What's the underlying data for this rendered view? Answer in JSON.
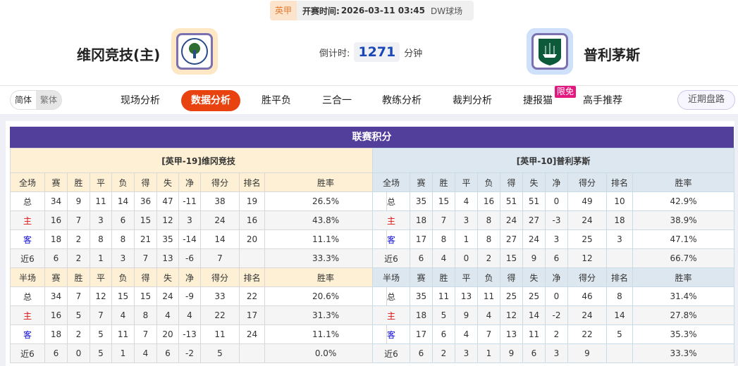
{
  "match": {
    "league": "英甲",
    "kickoff_label": "开赛时间:",
    "kickoff": "2026-03-11 03:45",
    "venue": "DW球场",
    "home": "维冈竞技(主)",
    "away": "普利茅斯",
    "countdown_label": "倒计时:",
    "countdown": "1271",
    "countdown_unit": "分钟"
  },
  "nav": {
    "lang": [
      "简体",
      "繁体"
    ],
    "items": [
      "现场分析",
      "数据分析",
      "胜平负",
      "三合一",
      "教练分析",
      "裁判分析",
      "捷报猫",
      "高手推荐"
    ],
    "active": "数据分析",
    "badge": "限免",
    "recent": "近期盘路"
  },
  "standings": {
    "title": "联赛积分",
    "cols_full": [
      "全场",
      "赛",
      "胜",
      "平",
      "负",
      "得",
      "失",
      "净",
      "得分",
      "排名",
      "胜率"
    ],
    "cols_half": [
      "半场",
      "赛",
      "胜",
      "平",
      "负",
      "得",
      "失",
      "净",
      "得分",
      "排名",
      "胜率"
    ],
    "home": {
      "name": "[英甲-19]维冈竞技",
      "full": [
        [
          "总",
          "34",
          "9",
          "11",
          "14",
          "36",
          "47",
          "-11",
          "38",
          "19",
          "26.5%"
        ],
        [
          "主",
          "16",
          "7",
          "3",
          "6",
          "15",
          "12",
          "3",
          "24",
          "16",
          "43.8%"
        ],
        [
          "客",
          "18",
          "2",
          "8",
          "8",
          "21",
          "35",
          "-14",
          "14",
          "20",
          "11.1%"
        ],
        [
          "近6",
          "6",
          "2",
          "1",
          "3",
          "7",
          "13",
          "-6",
          "7",
          "",
          "33.3%"
        ]
      ],
      "half": [
        [
          "总",
          "34",
          "7",
          "12",
          "15",
          "15",
          "24",
          "-9",
          "33",
          "22",
          "20.6%"
        ],
        [
          "主",
          "16",
          "5",
          "7",
          "4",
          "8",
          "4",
          "4",
          "22",
          "17",
          "31.3%"
        ],
        [
          "客",
          "18",
          "2",
          "5",
          "11",
          "7",
          "20",
          "-13",
          "11",
          "24",
          "11.1%"
        ],
        [
          "近6",
          "6",
          "0",
          "5",
          "1",
          "4",
          "6",
          "-2",
          "5",
          "",
          "0.0%"
        ]
      ]
    },
    "away": {
      "name": "[英甲-10]普利茅斯",
      "full": [
        [
          "总",
          "35",
          "15",
          "4",
          "16",
          "51",
          "51",
          "0",
          "49",
          "10",
          "42.9%"
        ],
        [
          "主",
          "18",
          "7",
          "3",
          "8",
          "24",
          "27",
          "-3",
          "24",
          "18",
          "38.9%"
        ],
        [
          "客",
          "17",
          "8",
          "1",
          "8",
          "27",
          "24",
          "3",
          "25",
          "3",
          "47.1%"
        ],
        [
          "近6",
          "6",
          "4",
          "0",
          "2",
          "15",
          "9",
          "6",
          "12",
          "",
          "66.7%"
        ]
      ],
      "half": [
        [
          "总",
          "35",
          "11",
          "13",
          "11",
          "25",
          "25",
          "0",
          "46",
          "8",
          "31.4%"
        ],
        [
          "主",
          "18",
          "5",
          "9",
          "4",
          "12",
          "14",
          "-2",
          "24",
          "14",
          "27.8%"
        ],
        [
          "客",
          "17",
          "6",
          "4",
          "7",
          "13",
          "11",
          "2",
          "22",
          "5",
          "35.3%"
        ],
        [
          "近6",
          "6",
          "2",
          "3",
          "1",
          "9",
          "6",
          "3",
          "9",
          "",
          "33.3%"
        ]
      ]
    }
  }
}
